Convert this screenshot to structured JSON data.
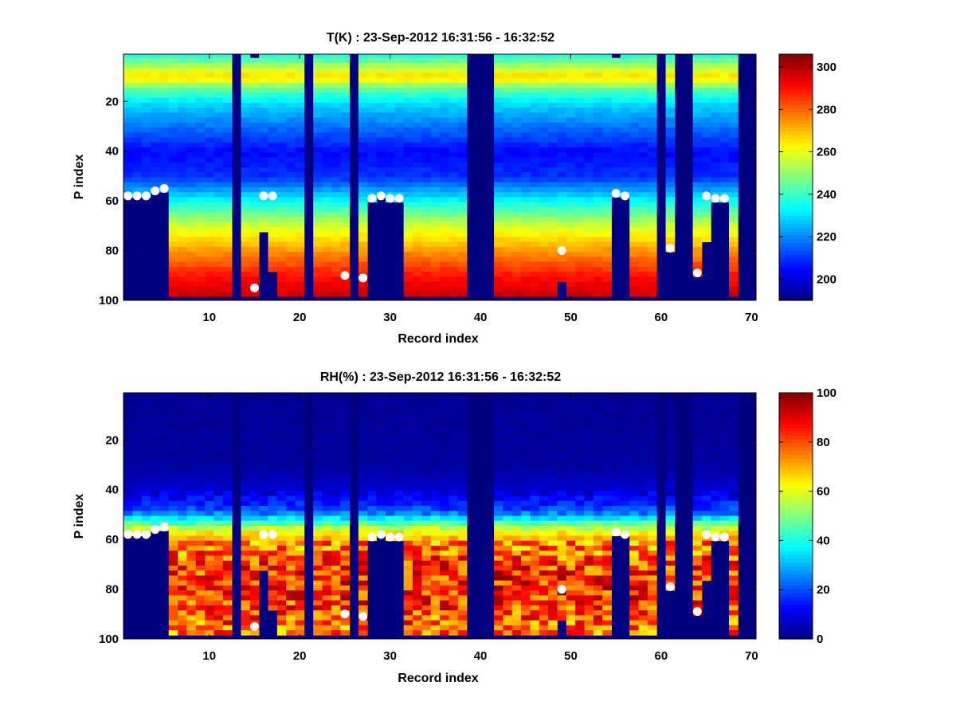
{
  "figure": {
    "panels": [
      {
        "id": "temperature",
        "title": "T(K) : 23-Sep-2012 16:31:56 - 16:32:52",
        "xlabel": "Record index",
        "ylabel": "P index",
        "colorbar": {
          "min": 190,
          "max": 306,
          "ticks": [
            200,
            220,
            240,
            260,
            280,
            300
          ]
        }
      },
      {
        "id": "humidity",
        "title": "RH(%) : 23-Sep-2012 16:31:56 - 16:32:52",
        "xlabel": "Record index",
        "ylabel": "P index",
        "colorbar": {
          "min": 0,
          "max": 100,
          "ticks": [
            0,
            20,
            40,
            60,
            80,
            100
          ]
        }
      }
    ]
  },
  "chart_data": [
    {
      "type": "heatmap",
      "title": "T(K) : 23-Sep-2012 16:31:56 - 16:32:52",
      "xlabel": "Record index",
      "ylabel": "P index",
      "xlim": [
        0.5,
        70.5
      ],
      "ylim": [
        1,
        100
      ],
      "y_reversed": true,
      "xticks": [
        10,
        20,
        30,
        40,
        50,
        60,
        70
      ],
      "yticks": [
        20,
        40,
        60,
        80,
        100
      ],
      "colormap": "jet",
      "colorbar": {
        "min": 190,
        "max": 306,
        "ticks": [
          200,
          220,
          240,
          260,
          280,
          300
        ],
        "label": "T(K)"
      },
      "profile_note_levels": {
        "surface_top_band_p": [
          7,
          12
        ],
        "cold_min_p": [
          35,
          50
        ]
      },
      "missing_records": [
        13,
        21,
        26,
        39,
        40,
        41,
        60,
        62,
        63,
        69,
        70
      ],
      "data_bottom": [
        58,
        58,
        58,
        56,
        55,
        98,
        98,
        98,
        98,
        98,
        98,
        98,
        0,
        98,
        98,
        72,
        88,
        98,
        98,
        98,
        0,
        98,
        98,
        98,
        98,
        0,
        98,
        59,
        58,
        59,
        59,
        98,
        98,
        98,
        98,
        98,
        98,
        98,
        0,
        0,
        0,
        98,
        98,
        98,
        98,
        98,
        98,
        98,
        92,
        98,
        98,
        98,
        98,
        98,
        57,
        58,
        98,
        98,
        98,
        0,
        80,
        0,
        0,
        89,
        76,
        59,
        59,
        98,
        0,
        0
      ],
      "data_top": [
        1,
        1,
        1,
        1,
        1,
        1,
        1,
        1,
        1,
        1,
        1,
        1,
        1,
        1,
        3,
        1,
        1,
        1,
        1,
        1,
        1,
        1,
        1,
        1,
        1,
        1,
        1,
        1,
        1,
        1,
        1,
        1,
        1,
        1,
        1,
        1,
        1,
        1,
        1,
        1,
        1,
        1,
        1,
        1,
        1,
        1,
        1,
        1,
        1,
        1,
        1,
        1,
        1,
        1,
        3,
        1,
        1,
        1,
        1,
        1,
        1,
        1,
        1,
        1,
        1,
        1,
        1,
        1,
        1,
        1
      ],
      "markers": [
        [
          1,
          58
        ],
        [
          2,
          58
        ],
        [
          3,
          58
        ],
        [
          4,
          56
        ],
        [
          5,
          55
        ],
        [
          15,
          95
        ],
        [
          16,
          58
        ],
        [
          17,
          58
        ],
        [
          25,
          90
        ],
        [
          27,
          91
        ],
        [
          28,
          59
        ],
        [
          29,
          58
        ],
        [
          30,
          59
        ],
        [
          31,
          59
        ],
        [
          49,
          80
        ],
        [
          55,
          57
        ],
        [
          56,
          58
        ],
        [
          61,
          79
        ],
        [
          64,
          89
        ],
        [
          65,
          58
        ],
        [
          66,
          59
        ],
        [
          67,
          59
        ]
      ],
      "profile": {
        "p": [
          1,
          6,
          10,
          14,
          20,
          30,
          40,
          50,
          60,
          70,
          80,
          90,
          100
        ],
        "value": [
          238,
          255,
          268,
          246,
          230,
          217,
          205,
          210,
          235,
          258,
          275,
          290,
          300
        ]
      }
    },
    {
      "type": "heatmap",
      "title": "RH(%) : 23-Sep-2012 16:31:56 - 16:32:52",
      "xlabel": "Record index",
      "ylabel": "P index",
      "xlim": [
        0.5,
        70.5
      ],
      "ylim": [
        1,
        100
      ],
      "y_reversed": true,
      "xticks": [
        10,
        20,
        30,
        40,
        50,
        60,
        70
      ],
      "yticks": [
        20,
        40,
        60,
        80,
        100
      ],
      "colormap": "jet",
      "colorbar": {
        "min": 0,
        "max": 100,
        "ticks": [
          0,
          20,
          40,
          60,
          80,
          100
        ],
        "label": "RH(%)"
      },
      "missing_records": [
        13,
        21,
        26,
        39,
        40,
        41,
        60,
        62,
        63,
        69,
        70
      ],
      "markers": [
        [
          1,
          58
        ],
        [
          2,
          58
        ],
        [
          3,
          58
        ],
        [
          4,
          56
        ],
        [
          5,
          55
        ],
        [
          15,
          95
        ],
        [
          16,
          58
        ],
        [
          17,
          58
        ],
        [
          25,
          90
        ],
        [
          27,
          91
        ],
        [
          28,
          59
        ],
        [
          29,
          58
        ],
        [
          30,
          59
        ],
        [
          31,
          59
        ],
        [
          49,
          80
        ],
        [
          55,
          57
        ],
        [
          56,
          58
        ],
        [
          61,
          79
        ],
        [
          64,
          89
        ],
        [
          65,
          58
        ],
        [
          66,
          59
        ],
        [
          67,
          59
        ]
      ],
      "profile": {
        "p": [
          1,
          30,
          40,
          48,
          52,
          56,
          60,
          65,
          70,
          80,
          90,
          100
        ],
        "value": [
          2,
          3,
          8,
          20,
          40,
          62,
          72,
          78,
          82,
          85,
          80,
          75
        ]
      }
    }
  ]
}
